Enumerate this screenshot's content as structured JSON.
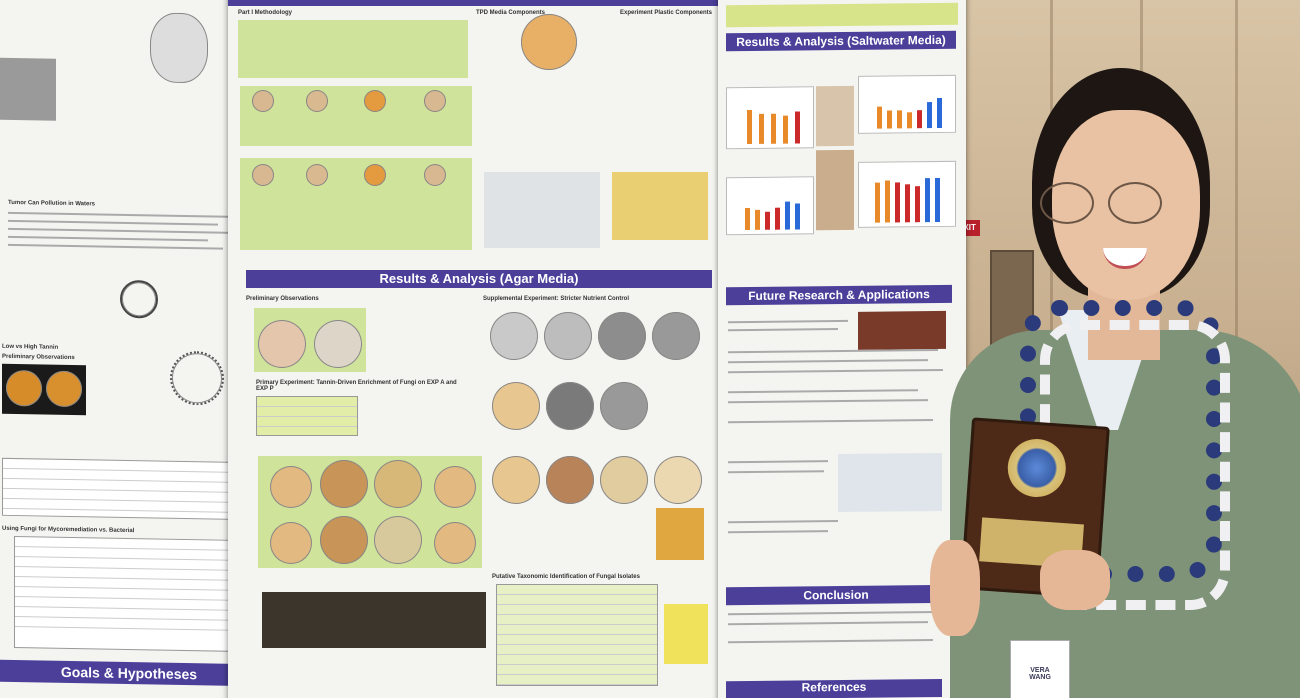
{
  "poster": {
    "left": {
      "heading_tumor": "Tumor Can Pollution in Waters",
      "heading_high_tannin": "Low vs High Tannin",
      "heading_prelim": "Preliminary Observations",
      "heading_fungi": "Using Fungi for Mycoremediation vs. Bacterial",
      "band_goals": "Goals & Hypotheses"
    },
    "middle": {
      "heading_methodology": "Part I Methodology",
      "heading_tpd": "TPD Media Components",
      "heading_experiment": "Experiment Plastic Components",
      "band_results": "Results & Analysis (Agar Media)",
      "heading_preliminary": "Preliminary Observations",
      "heading_primary": "Primary Experiment: Tannin-Driven Enrichment of Fungi on EXP A and EXP P",
      "heading_supplemental": "Supplemental Experiment: Stricter Nutrient Control",
      "heading_putative": "Putative Taxonomic Identification of Fungal Isolates"
    },
    "right": {
      "band_results": "Results & Analysis (Saltwater Media)",
      "band_future": "Future Research & Applications",
      "band_conclusion": "Conclusion",
      "band_references": "References"
    }
  },
  "exit_sign": "EXIT",
  "name_badge": [
    "VERA",
    "WANG"
  ],
  "colors": {
    "band_purple": "#4b3f9a",
    "highlight_green": "#d8e48a",
    "jacket": "#7f9379",
    "lei_blue": "#2b3a7a",
    "plaque_wood": "#4c2a17",
    "plaque_gold": "#cfb36a"
  }
}
